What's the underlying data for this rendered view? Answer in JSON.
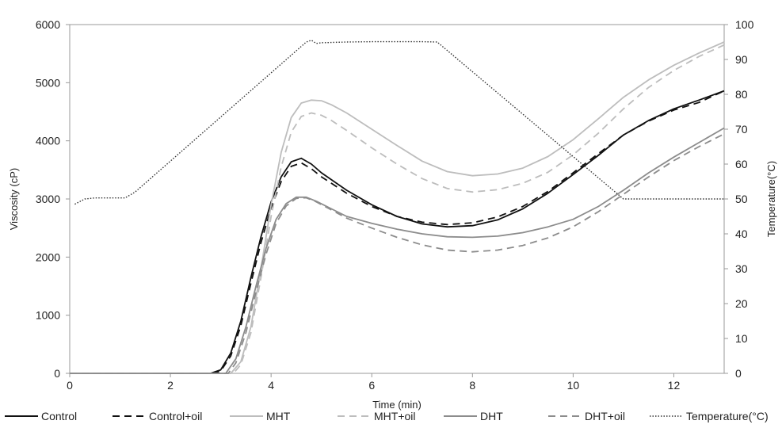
{
  "chart_data": {
    "type": "line",
    "title": "",
    "xlabel": "Time (min)",
    "ylabel": "Viscosity (cP)",
    "y2label": "Temperature(°C)",
    "xlim": [
      0,
      13
    ],
    "ylim": [
      0,
      6000
    ],
    "y2lim": [
      0,
      100
    ],
    "xticks": [
      "0",
      "2",
      "4",
      "6",
      "8",
      "10",
      "12"
    ],
    "yticks": [
      "0",
      "1000",
      "2000",
      "3000",
      "4000",
      "5000",
      "6000"
    ],
    "y2ticks": [
      "0",
      "10",
      "20",
      "30",
      "40",
      "50",
      "60",
      "70",
      "80",
      "90",
      "100"
    ],
    "grid": false,
    "legend_position": "bottom",
    "colors": {
      "black": "#111111",
      "light": "#bdbdbd",
      "dark": "#8c8c8c"
    },
    "series": [
      {
        "name": "Control",
        "axis": "left",
        "color": "#111111",
        "dash": "solid",
        "x": [
          0,
          2.8,
          3.0,
          3.2,
          3.4,
          3.6,
          3.8,
          4.0,
          4.2,
          4.4,
          4.6,
          4.8,
          5.0,
          5.5,
          6.0,
          6.5,
          7.0,
          7.5,
          8.0,
          8.5,
          9.0,
          9.5,
          10.0,
          10.5,
          11.0,
          11.5,
          12.0,
          12.5,
          13.0
        ],
        "y": [
          0,
          0,
          60,
          350,
          900,
          1650,
          2350,
          2950,
          3380,
          3640,
          3700,
          3600,
          3450,
          3150,
          2900,
          2700,
          2570,
          2520,
          2540,
          2640,
          2830,
          3100,
          3420,
          3750,
          4100,
          4350,
          4550,
          4700,
          4860
        ]
      },
      {
        "name": "Control+oil",
        "axis": "left",
        "color": "#111111",
        "dash": "dashed",
        "x": [
          0,
          2.85,
          3.0,
          3.2,
          3.4,
          3.6,
          3.8,
          4.0,
          4.2,
          4.4,
          4.6,
          4.8,
          5.0,
          5.5,
          6.0,
          6.5,
          7.0,
          7.5,
          8.0,
          8.5,
          9.0,
          9.5,
          10.0,
          10.5,
          11.0,
          11.5,
          12.0,
          12.5,
          13.0
        ],
        "y": [
          0,
          0,
          40,
          300,
          820,
          1550,
          2250,
          2850,
          3300,
          3560,
          3620,
          3520,
          3380,
          3100,
          2870,
          2700,
          2600,
          2560,
          2590,
          2690,
          2870,
          3130,
          3450,
          3780,
          4100,
          4340,
          4530,
          4660,
          4860
        ]
      },
      {
        "name": "MHT",
        "axis": "left",
        "color": "#bdbdbd",
        "dash": "solid",
        "x": [
          0,
          3.2,
          3.4,
          3.6,
          3.8,
          4.0,
          4.2,
          4.4,
          4.6,
          4.8,
          5.0,
          5.2,
          5.5,
          6.0,
          6.5,
          7.0,
          7.5,
          8.0,
          8.5,
          9.0,
          9.5,
          10.0,
          10.5,
          11.0,
          11.5,
          12.0,
          12.5,
          13.0
        ],
        "y": [
          0,
          0,
          200,
          800,
          1800,
          2900,
          3800,
          4400,
          4650,
          4700,
          4690,
          4620,
          4480,
          4200,
          3920,
          3650,
          3470,
          3400,
          3430,
          3530,
          3730,
          4020,
          4380,
          4750,
          5050,
          5300,
          5510,
          5700
        ]
      },
      {
        "name": "MHT+oil",
        "axis": "left",
        "color": "#bdbdbd",
        "dash": "dashed",
        "x": [
          0,
          3.25,
          3.4,
          3.6,
          3.8,
          4.0,
          4.2,
          4.4,
          4.6,
          4.8,
          5.0,
          5.2,
          5.5,
          6.0,
          6.5,
          7.0,
          7.5,
          8.0,
          8.5,
          9.0,
          9.5,
          10.0,
          10.5,
          11.0,
          11.5,
          12.0,
          12.5,
          13.0
        ],
        "y": [
          0,
          0,
          150,
          700,
          1650,
          2700,
          3550,
          4150,
          4420,
          4480,
          4440,
          4350,
          4180,
          3880,
          3600,
          3350,
          3180,
          3120,
          3160,
          3270,
          3460,
          3760,
          4130,
          4550,
          4920,
          5210,
          5450,
          5650
        ]
      },
      {
        "name": "DHT",
        "axis": "left",
        "color": "#8c8c8c",
        "dash": "solid",
        "x": [
          0,
          3.1,
          3.3,
          3.5,
          3.7,
          3.9,
          4.1,
          4.3,
          4.5,
          4.7,
          4.9,
          5.2,
          5.5,
          6.0,
          6.5,
          7.0,
          7.5,
          8.0,
          8.5,
          9.0,
          9.5,
          10.0,
          10.5,
          11.0,
          11.5,
          12.0,
          12.5,
          13.0
        ],
        "y": [
          0,
          0,
          250,
          800,
          1500,
          2150,
          2650,
          2920,
          3030,
          3030,
          2960,
          2830,
          2700,
          2580,
          2480,
          2400,
          2350,
          2340,
          2360,
          2420,
          2520,
          2650,
          2870,
          3150,
          3450,
          3720,
          3970,
          4220
        ]
      },
      {
        "name": "DHT+oil",
        "axis": "left",
        "color": "#8c8c8c",
        "dash": "dashed",
        "x": [
          0,
          3.15,
          3.3,
          3.5,
          3.7,
          3.9,
          4.1,
          4.3,
          4.5,
          4.7,
          4.9,
          5.2,
          5.5,
          6.0,
          6.5,
          7.0,
          7.5,
          8.0,
          8.5,
          9.0,
          9.5,
          10.0,
          10.5,
          11.0,
          11.5,
          12.0,
          12.5,
          13.0
        ],
        "y": [
          0,
          0,
          180,
          700,
          1400,
          2050,
          2580,
          2880,
          3010,
          3020,
          2950,
          2810,
          2670,
          2500,
          2340,
          2210,
          2120,
          2090,
          2120,
          2200,
          2330,
          2520,
          2780,
          3080,
          3380,
          3660,
          3900,
          4120
        ]
      },
      {
        "name": "Temperature(°C)",
        "axis": "right",
        "color": "#333333",
        "dash": "dotted",
        "x": [
          0.1,
          0.3,
          0.5,
          1.1,
          1.3,
          4.7,
          4.8,
          4.9,
          5.0,
          5.5,
          6.0,
          7.0,
          7.3,
          11.0,
          13.0
        ],
        "y": [
          48.5,
          50,
          50.3,
          50.3,
          52,
          95,
          95.5,
          94.6,
          94.8,
          95,
          95.1,
          95.1,
          95,
          50,
          50
        ]
      }
    ],
    "legend": [
      {
        "label": "Control",
        "color": "#111111",
        "dash": "solid"
      },
      {
        "label": "Control+oil",
        "color": "#111111",
        "dash": "dashed"
      },
      {
        "label": "MHT",
        "color": "#bdbdbd",
        "dash": "solid"
      },
      {
        "label": "MHT+oil",
        "color": "#bdbdbd",
        "dash": "dashed"
      },
      {
        "label": "DHT",
        "color": "#8c8c8c",
        "dash": "solid"
      },
      {
        "label": "DHT+oil",
        "color": "#8c8c8c",
        "dash": "dashed"
      },
      {
        "label": "Temperature(°C)",
        "color": "#333333",
        "dash": "dotted"
      }
    ]
  }
}
